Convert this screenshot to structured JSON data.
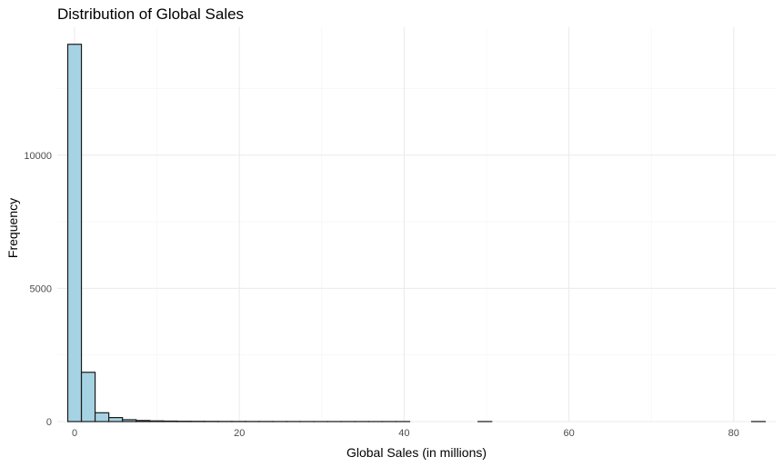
{
  "chart_data": {
    "type": "bar",
    "title": "Distribution of Global Sales",
    "xlabel": "Global Sales (in millions)",
    "ylabel": "Frequency",
    "xlim": [
      -2.1,
      85.1
    ],
    "ylim": [
      0,
      14800
    ],
    "x_ticks": [
      0,
      20,
      40,
      60,
      80
    ],
    "y_ticks": [
      0,
      5000,
      10000
    ],
    "x_minor_ticks": [
      10,
      30,
      50,
      70
    ],
    "y_minor_ticks": [
      2500,
      7500,
      12500
    ],
    "grid": true,
    "legend": "none",
    "bar_fill": "#a6d3e3",
    "bar_outline": "#1a1a1a",
    "bin_width": 1.66,
    "bin_centers": [
      0,
      1.66,
      3.32,
      4.98,
      6.64,
      8.3,
      9.96,
      11.62,
      13.28,
      14.94,
      16.6,
      18.26,
      19.92,
      21.58,
      23.24,
      24.9,
      26.56,
      28.22,
      29.88,
      31.54,
      33.2,
      34.86,
      36.52,
      38.18,
      39.84,
      41.5,
      43.16,
      44.82,
      46.48,
      48.14,
      49.8,
      51.46,
      53.12,
      54.78,
      56.44,
      58.1,
      59.76,
      61.42,
      63.08,
      64.74,
      66.4,
      68.06,
      69.72,
      71.38,
      73.04,
      74.7,
      76.36,
      78.02,
      79.68,
      81.34,
      83.0
    ],
    "values": [
      14160,
      1850,
      330,
      150,
      70,
      40,
      25,
      18,
      12,
      9,
      7,
      5,
      4,
      3,
      3,
      2,
      2,
      1,
      1,
      1,
      1,
      1,
      1,
      1,
      1,
      0,
      0,
      0,
      0,
      0,
      1,
      0,
      0,
      0,
      0,
      0,
      0,
      0,
      0,
      0,
      0,
      0,
      0,
      0,
      0,
      0,
      0,
      0,
      0,
      0,
      1
    ]
  }
}
